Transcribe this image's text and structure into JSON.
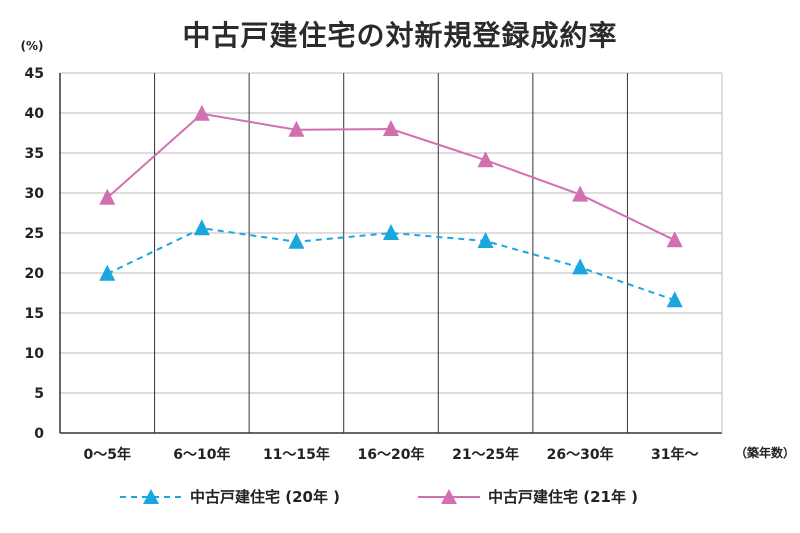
{
  "chart_data": {
    "type": "line",
    "title": "中古戸建住宅の対新規登録成約率",
    "ylabel": "(%)",
    "xlabel": "（築年数）",
    "ylim": [
      0,
      45
    ],
    "yticks": [
      0,
      5,
      10,
      15,
      20,
      25,
      30,
      35,
      40,
      45
    ],
    "categories": [
      "0～5年",
      "6～10年",
      "11～15年",
      "16～20年",
      "21～25年",
      "26～30年",
      "31年～"
    ],
    "series": [
      {
        "name": "中古戸建住宅 (20年 )",
        "color": "#1aa7e0",
        "dash": true,
        "values": [
          19.9,
          25.6,
          23.9,
          25.0,
          24.0,
          20.7,
          16.6
        ]
      },
      {
        "name": "中古戸建住宅 (21年 )",
        "color": "#d16fb0",
        "dash": false,
        "values": [
          29.4,
          39.9,
          37.9,
          38.0,
          34.1,
          29.8,
          24.1
        ]
      }
    ],
    "grid": true,
    "legend_position": "bottom"
  }
}
